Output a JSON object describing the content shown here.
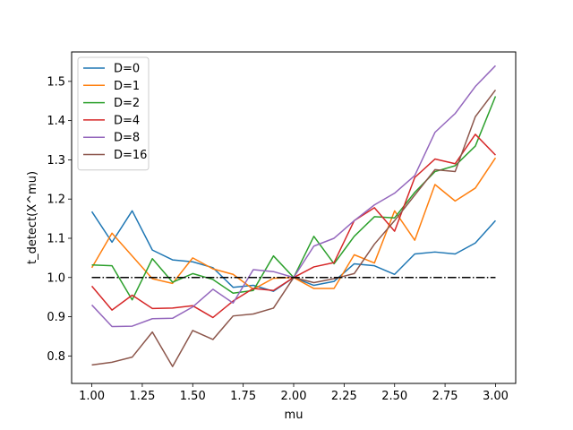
{
  "chart_data": {
    "type": "line",
    "title": "",
    "xlabel": "mu",
    "ylabel": "t_detect(X^mu)",
    "xlim": [
      0.9,
      3.1
    ],
    "ylim": [
      0.73,
      1.575
    ],
    "xticks": [
      1.0,
      1.25,
      1.5,
      1.75,
      2.0,
      2.25,
      2.5,
      2.75,
      3.0
    ],
    "xtick_labels": [
      "1.00",
      "1.25",
      "1.50",
      "1.75",
      "2.00",
      "2.25",
      "2.50",
      "2.75",
      "3.00"
    ],
    "yticks": [
      0.8,
      0.9,
      1.0,
      1.1,
      1.2,
      1.3,
      1.4,
      1.5
    ],
    "ytick_labels": [
      "0.8",
      "0.9",
      "1.0",
      "1.1",
      "1.2",
      "1.3",
      "1.4",
      "1.5"
    ],
    "grid": false,
    "legend_position": "top-left",
    "x": [
      1.0,
      1.1,
      1.2,
      1.3,
      1.4,
      1.5,
      1.6,
      1.7,
      1.8,
      1.9,
      2.0,
      2.1,
      2.2,
      2.3,
      2.4,
      2.5,
      2.6,
      2.7,
      2.8,
      2.9,
      3.0
    ],
    "series": [
      {
        "name": "D=0",
        "color": "#1f77b4",
        "values": [
          1.168,
          1.09,
          1.17,
          1.07,
          1.045,
          1.04,
          1.025,
          0.975,
          0.98,
          0.965,
          1.0,
          0.98,
          0.99,
          1.035,
          1.03,
          1.008,
          1.06,
          1.065,
          1.06,
          1.088,
          1.145
        ]
      },
      {
        "name": "D=1",
        "color": "#ff7f0e",
        "values": [
          1.025,
          1.113,
          1.055,
          0.997,
          0.985,
          1.05,
          1.022,
          1.008,
          0.97,
          0.998,
          1.0,
          0.972,
          0.972,
          1.058,
          1.037,
          1.17,
          1.095,
          1.237,
          1.195,
          1.228,
          1.305
        ]
      },
      {
        "name": "D=2",
        "color": "#2ca02c",
        "values": [
          1.032,
          1.03,
          0.943,
          1.048,
          0.988,
          1.01,
          0.995,
          0.96,
          0.967,
          1.055,
          1.0,
          1.105,
          1.035,
          1.105,
          1.155,
          1.152,
          1.217,
          1.27,
          1.285,
          1.335,
          1.462
        ]
      },
      {
        "name": "D=4",
        "color": "#d62728",
        "values": [
          0.978,
          0.917,
          0.955,
          0.921,
          0.922,
          0.928,
          0.898,
          0.94,
          0.972,
          0.967,
          1.0,
          1.027,
          1.038,
          1.145,
          1.178,
          1.118,
          1.255,
          1.302,
          1.29,
          1.365,
          1.312
        ]
      },
      {
        "name": "D=8",
        "color": "#9467bd",
        "values": [
          0.93,
          0.875,
          0.876,
          0.895,
          0.896,
          0.925,
          0.97,
          0.935,
          1.02,
          1.015,
          1.0,
          1.08,
          1.1,
          1.145,
          1.185,
          1.215,
          1.26,
          1.37,
          1.418,
          1.487,
          1.54
        ]
      },
      {
        "name": "D=16",
        "color": "#8c564b",
        "values": [
          0.777,
          0.784,
          0.797,
          0.861,
          0.773,
          0.865,
          0.842,
          0.902,
          0.907,
          0.922,
          1.0,
          0.987,
          0.997,
          1.01,
          1.085,
          1.145,
          1.21,
          1.275,
          1.27,
          1.41,
          1.478
        ]
      }
    ],
    "reference_line": {
      "y": 1.0,
      "color": "#000000",
      "style": "dash-dot"
    }
  }
}
